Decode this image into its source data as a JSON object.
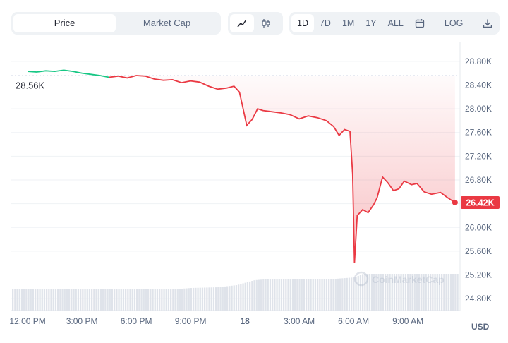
{
  "toolbar": {
    "price_label": "Price",
    "market_cap_label": "Market Cap",
    "ranges": [
      "1D",
      "7D",
      "1M",
      "1Y",
      "ALL"
    ],
    "log_label": "LOG"
  },
  "currency": "USD",
  "watermark": "CoinMarketCap",
  "chart_data": {
    "type": "line",
    "x_ticks": [
      "12:00 PM",
      "3:00 PM",
      "6:00 PM",
      "9:00 PM",
      "18",
      "3:00 AM",
      "6:00 AM",
      "9:00 AM"
    ],
    "y_ticks": [
      "28.80K",
      "28.40K",
      "28.00K",
      "27.60K",
      "27.20K",
      "26.80K",
      "26.40K",
      "26.00K",
      "25.60K",
      "25.20K",
      "24.80K"
    ],
    "ylim": [
      24.6,
      29.0
    ],
    "xlim": [
      11.1,
      35.8
    ],
    "open_label": "28.56K",
    "open_value": 28.56,
    "last_label": "26.42K",
    "last_value": 26.42,
    "colors": {
      "up": "#16c784",
      "down": "#ea3943",
      "reference": "#cfd6e4"
    },
    "series": [
      {
        "values": [
          [
            12.0,
            28.63
          ],
          [
            12.5,
            28.62
          ],
          [
            13.0,
            28.64
          ],
          [
            13.5,
            28.63
          ],
          [
            14.0,
            28.65
          ],
          [
            14.5,
            28.63
          ],
          [
            15.0,
            28.6
          ],
          [
            15.5,
            28.58
          ],
          [
            16.0,
            28.56
          ],
          [
            16.5,
            28.53
          ],
          [
            17.0,
            28.55
          ],
          [
            17.5,
            28.52
          ],
          [
            18.0,
            28.56
          ],
          [
            18.5,
            28.55
          ],
          [
            19.0,
            28.5
          ],
          [
            19.5,
            28.48
          ],
          [
            20.0,
            28.49
          ],
          [
            20.5,
            28.44
          ],
          [
            21.0,
            28.47
          ],
          [
            21.5,
            28.45
          ],
          [
            22.0,
            28.38
          ],
          [
            22.5,
            28.33
          ],
          [
            23.0,
            28.35
          ],
          [
            23.4,
            28.38
          ],
          [
            23.7,
            28.28
          ],
          [
            23.9,
            28.0
          ],
          [
            24.1,
            27.72
          ],
          [
            24.4,
            27.82
          ],
          [
            24.7,
            28.0
          ],
          [
            25.0,
            27.97
          ],
          [
            25.5,
            27.95
          ],
          [
            26.0,
            27.93
          ],
          [
            26.5,
            27.9
          ],
          [
            27.0,
            27.83
          ],
          [
            27.5,
            27.88
          ],
          [
            28.0,
            27.85
          ],
          [
            28.5,
            27.8
          ],
          [
            28.9,
            27.7
          ],
          [
            29.2,
            27.55
          ],
          [
            29.5,
            27.65
          ],
          [
            29.8,
            27.62
          ],
          [
            29.95,
            26.9
          ],
          [
            30.05,
            25.4
          ],
          [
            30.2,
            26.2
          ],
          [
            30.5,
            26.3
          ],
          [
            30.8,
            26.25
          ],
          [
            31.1,
            26.38
          ],
          [
            31.3,
            26.5
          ],
          [
            31.6,
            26.85
          ],
          [
            31.9,
            26.75
          ],
          [
            32.2,
            26.62
          ],
          [
            32.5,
            26.65
          ],
          [
            32.8,
            26.78
          ],
          [
            33.2,
            26.72
          ],
          [
            33.5,
            26.74
          ],
          [
            33.9,
            26.6
          ],
          [
            34.3,
            26.56
          ],
          [
            34.8,
            26.59
          ],
          [
            35.2,
            26.5
          ],
          [
            35.6,
            26.42
          ]
        ]
      }
    ],
    "volume": [
      [
        12.0,
        0.3
      ],
      [
        20.0,
        0.3
      ],
      [
        21.0,
        0.32
      ],
      [
        22.5,
        0.33
      ],
      [
        23.5,
        0.36
      ],
      [
        24.5,
        0.43
      ],
      [
        25.5,
        0.45
      ],
      [
        29.0,
        0.45
      ],
      [
        30.0,
        0.47
      ],
      [
        30.5,
        0.52
      ],
      [
        35.6,
        0.52
      ]
    ]
  }
}
